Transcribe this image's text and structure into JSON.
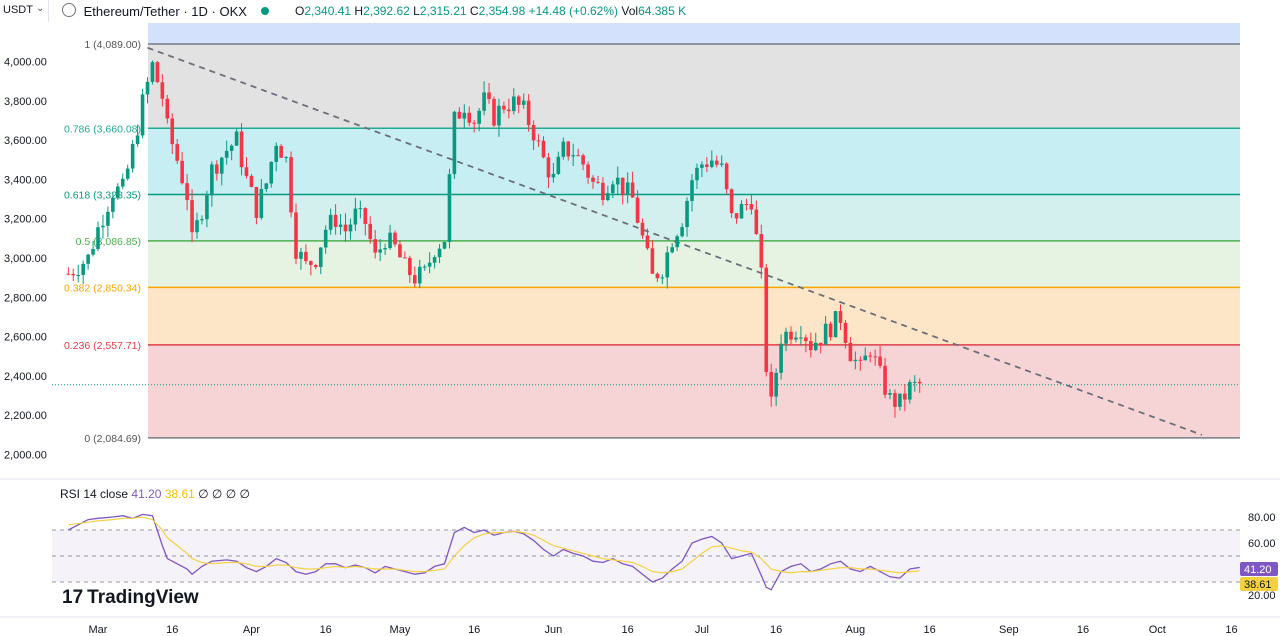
{
  "header": {
    "currency": "USDT",
    "pair_title": "Ethereum/Tether · 1D · OKX",
    "o_label": "O",
    "o_value": "2,340.41",
    "h_label": "H",
    "h_value": "2,392.62",
    "l_label": "L",
    "l_value": "2,315.21",
    "c_label": "C",
    "c_value": "2,354.98",
    "change": "+14.48 (+0.62%)",
    "vol_label": "Vol",
    "vol_value": "64.385 K"
  },
  "colors": {
    "up": "#089981",
    "down": "#f23645",
    "rsi": "#7e57c2",
    "rsi_ma": "#f5d142",
    "fib_0": "#f6d4d6",
    "fib_236": "#fde6c8",
    "fib_382": "#e6f3e3",
    "fib_5": "#d3f0ee",
    "fib_618": "#c7eef3",
    "fib_786": "#e2e2e2",
    "fib_1": "#d3e1fd"
  },
  "chart_data": [
    {
      "type": "candlestick",
      "title": "Ethereum/Tether · 1D · OKX",
      "ylim": [
        1950,
        4150
      ],
      "y_ticks": [
        2000,
        2200,
        2400,
        2600,
        2800,
        3000,
        3200,
        3400,
        3600,
        3800,
        4000
      ],
      "y_tick_labels": [
        "2,000.00",
        "2,200.00",
        "2,400.00",
        "2,600.00",
        "2,800.00",
        "3,000.00",
        "3,200.00",
        "3,400.00",
        "3,600.00",
        "3,800.00",
        "4,000.00"
      ],
      "x_ticks": [
        "Mar",
        "16",
        "Apr",
        "16",
        "May",
        "16",
        "Jun",
        "16",
        "Jul",
        "16",
        "Aug",
        "16",
        "Sep",
        "16",
        "Oct",
        "16"
      ],
      "x_tick_days": [
        0,
        15,
        31,
        46,
        61,
        76,
        92,
        107,
        122,
        137,
        153,
        168,
        184,
        199,
        214,
        229
      ],
      "fib_levels": [
        {
          "label": "1 (4,089.00)",
          "value": 4089
        },
        {
          "label": "0.786 (3,660.08)",
          "value": 3660.08
        },
        {
          "label": "0.618 (3,323.35)",
          "value": 3323.35
        },
        {
          "label": "0.5 (3,086.85)",
          "value": 3086.85
        },
        {
          "label": "0.382 (2,850.34)",
          "value": 2850.34
        },
        {
          "label": "0.236 (2,557.71)",
          "value": 2557.71
        },
        {
          "label": "0 (2,084.69)",
          "value": 2084.69
        }
      ],
      "trendline": [
        {
          "day": 10,
          "price": 4070
        },
        {
          "day": 223,
          "price": 2100
        }
      ],
      "current_price": 2354.98,
      "close_path": [
        [
          -6,
          2920
        ],
        [
          -2,
          3000
        ],
        [
          0,
          3150
        ],
        [
          3,
          3340
        ],
        [
          5,
          3350
        ],
        [
          7,
          3550
        ],
        [
          9,
          3790
        ],
        [
          11,
          3980
        ],
        [
          13,
          3820
        ],
        [
          14,
          3660
        ],
        [
          16,
          3500
        ],
        [
          18,
          3320
        ],
        [
          19,
          3080
        ],
        [
          21,
          3250
        ],
        [
          23,
          3450
        ],
        [
          26,
          3550
        ],
        [
          28,
          3600
        ],
        [
          30,
          3400
        ],
        [
          32,
          3250
        ],
        [
          34,
          3380
        ],
        [
          36,
          3600
        ],
        [
          38,
          3500
        ],
        [
          40,
          3050
        ],
        [
          42,
          2960
        ],
        [
          44,
          3000
        ],
        [
          46,
          3150
        ],
        [
          48,
          3200
        ],
        [
          50,
          3140
        ],
        [
          52,
          3220
        ],
        [
          54,
          3180
        ],
        [
          56,
          3000
        ],
        [
          58,
          3100
        ],
        [
          60,
          3050
        ],
        [
          62,
          2950
        ],
        [
          64,
          2900
        ],
        [
          66,
          2920
        ],
        [
          68,
          3050
        ],
        [
          70,
          3100
        ],
        [
          72,
          3700
        ],
        [
          74,
          3780
        ],
        [
          76,
          3700
        ],
        [
          78,
          3800
        ],
        [
          80,
          3720
        ],
        [
          82,
          3780
        ],
        [
          84,
          3790
        ],
        [
          86,
          3750
        ],
        [
          88,
          3640
        ],
        [
          90,
          3500
        ],
        [
          92,
          3400
        ],
        [
          94,
          3550
        ],
        [
          96,
          3540
        ],
        [
          98,
          3480
        ],
        [
          100,
          3380
        ],
        [
          102,
          3350
        ],
        [
          104,
          3420
        ],
        [
          106,
          3360
        ],
        [
          108,
          3300
        ],
        [
          110,
          3100
        ],
        [
          112,
          2900
        ],
        [
          114,
          2950
        ],
        [
          116,
          3100
        ],
        [
          118,
          3200
        ],
        [
          120,
          3400
        ],
        [
          122,
          3480
        ],
        [
          124,
          3500
        ],
        [
          126,
          3450
        ],
        [
          128,
          3200
        ],
        [
          130,
          3250
        ],
        [
          132,
          3300
        ],
        [
          134,
          2900
        ],
        [
          135,
          2450
        ],
        [
          136,
          2250
        ],
        [
          138,
          2600
        ],
        [
          140,
          2630
        ],
        [
          142,
          2650
        ],
        [
          144,
          2560
        ],
        [
          146,
          2600
        ],
        [
          148,
          2650
        ],
        [
          150,
          2700
        ],
        [
          152,
          2520
        ],
        [
          154,
          2430
        ],
        [
          156,
          2540
        ],
        [
          158,
          2400
        ],
        [
          160,
          2280
        ],
        [
          162,
          2260
        ],
        [
          164,
          2340
        ],
        [
          166,
          2355
        ]
      ]
    },
    {
      "type": "line",
      "title": "RSI 14 close",
      "ylim": [
        20,
        85
      ],
      "y_ticks": [
        20,
        40,
        60,
        80
      ],
      "y_tick_labels": [
        "20.00",
        "40.00",
        "60.00",
        "80.00"
      ],
      "bands": [
        30,
        50,
        70
      ],
      "series": [
        {
          "name": "RSI",
          "last": "41.20",
          "values": [
            [
              -6,
              70
            ],
            [
              -2,
              78
            ],
            [
              0,
              79
            ],
            [
              3,
              80
            ],
            [
              5,
              81
            ],
            [
              7,
              79
            ],
            [
              9,
              82
            ],
            [
              11,
              81
            ],
            [
              13,
              58
            ],
            [
              14,
              48
            ],
            [
              16,
              44
            ],
            [
              18,
              40
            ],
            [
              19,
              36
            ],
            [
              21,
              42
            ],
            [
              23,
              46
            ],
            [
              26,
              47
            ],
            [
              28,
              46
            ],
            [
              30,
              41
            ],
            [
              32,
              38
            ],
            [
              34,
              42
            ],
            [
              36,
              48
            ],
            [
              38,
              45
            ],
            [
              40,
              38
            ],
            [
              42,
              36
            ],
            [
              44,
              38
            ],
            [
              46,
              44
            ],
            [
              48,
              44
            ],
            [
              50,
              41
            ],
            [
              52,
              43
            ],
            [
              54,
              41
            ],
            [
              56,
              37
            ],
            [
              58,
              42
            ],
            [
              60,
              40
            ],
            [
              62,
              38
            ],
            [
              64,
              36
            ],
            [
              66,
              37
            ],
            [
              68,
              42
            ],
            [
              70,
              44
            ],
            [
              72,
              68
            ],
            [
              74,
              72
            ],
            [
              76,
              68
            ],
            [
              78,
              70
            ],
            [
              80,
              66
            ],
            [
              82,
              68
            ],
            [
              84,
              69
            ],
            [
              86,
              67
            ],
            [
              88,
              62
            ],
            [
              90,
              55
            ],
            [
              92,
              50
            ],
            [
              94,
              55
            ],
            [
              96,
              52
            ],
            [
              98,
              50
            ],
            [
              100,
              46
            ],
            [
              102,
              45
            ],
            [
              104,
              48
            ],
            [
              106,
              44
            ],
            [
              108,
              42
            ],
            [
              110,
              36
            ],
            [
              112,
              30
            ],
            [
              114,
              33
            ],
            [
              116,
              40
            ],
            [
              118,
              46
            ],
            [
              120,
              60
            ],
            [
              122,
              63
            ],
            [
              124,
              65
            ],
            [
              126,
              60
            ],
            [
              128,
              48
            ],
            [
              130,
              50
            ],
            [
              132,
              52
            ],
            [
              134,
              35
            ],
            [
              135,
              26
            ],
            [
              136,
              24
            ],
            [
              138,
              38
            ],
            [
              140,
              42
            ],
            [
              142,
              44
            ],
            [
              144,
              38
            ],
            [
              146,
              40
            ],
            [
              148,
              44
            ],
            [
              150,
              46
            ],
            [
              152,
              40
            ],
            [
              154,
              38
            ],
            [
              156,
              42
            ],
            [
              158,
              38
            ],
            [
              160,
              34
            ],
            [
              162,
              33
            ],
            [
              164,
              40
            ],
            [
              166,
              41.2
            ]
          ]
        },
        {
          "name": "RSI-based MA",
          "last": "38.61",
          "values": [
            [
              -6,
              74
            ],
            [
              -2,
              76
            ],
            [
              0,
              77
            ],
            [
              3,
              78
            ],
            [
              5,
              79
            ],
            [
              7,
              79
            ],
            [
              9,
              80
            ],
            [
              11,
              78
            ],
            [
              13,
              70
            ],
            [
              14,
              64
            ],
            [
              16,
              58
            ],
            [
              18,
              52
            ],
            [
              19,
              48
            ],
            [
              21,
              45
            ],
            [
              23,
              44
            ],
            [
              26,
              45
            ],
            [
              28,
              45
            ],
            [
              30,
              44
            ],
            [
              32,
              42
            ],
            [
              34,
              42
            ],
            [
              36,
              43
            ],
            [
              38,
              43
            ],
            [
              40,
              41
            ],
            [
              42,
              40
            ],
            [
              44,
              40
            ],
            [
              46,
              41
            ],
            [
              48,
              42
            ],
            [
              50,
              41
            ],
            [
              52,
              42
            ],
            [
              54,
              41
            ],
            [
              56,
              40
            ],
            [
              58,
              40
            ],
            [
              60,
              40
            ],
            [
              62,
              39
            ],
            [
              64,
              38
            ],
            [
              66,
              38
            ],
            [
              68,
              39
            ],
            [
              70,
              40
            ],
            [
              72,
              50
            ],
            [
              74,
              58
            ],
            [
              76,
              64
            ],
            [
              78,
              67
            ],
            [
              80,
              68
            ],
            [
              82,
              68
            ],
            [
              84,
              69
            ],
            [
              86,
              68
            ],
            [
              88,
              66
            ],
            [
              90,
              62
            ],
            [
              92,
              58
            ],
            [
              94,
              56
            ],
            [
              96,
              54
            ],
            [
              98,
              52
            ],
            [
              100,
              50
            ],
            [
              102,
              48
            ],
            [
              104,
              47
            ],
            [
              106,
              46
            ],
            [
              108,
              45
            ],
            [
              110,
              42
            ],
            [
              112,
              38
            ],
            [
              114,
              37
            ],
            [
              116,
              38
            ],
            [
              118,
              40
            ],
            [
              120,
              46
            ],
            [
              122,
              52
            ],
            [
              124,
              57
            ],
            [
              126,
              58
            ],
            [
              128,
              56
            ],
            [
              130,
              54
            ],
            [
              132,
              53
            ],
            [
              134,
              48
            ],
            [
              135,
              44
            ],
            [
              136,
              40
            ],
            [
              138,
              38
            ],
            [
              140,
              37
            ],
            [
              142,
              38
            ],
            [
              144,
              38
            ],
            [
              146,
              39
            ],
            [
              148,
              40
            ],
            [
              150,
              41
            ],
            [
              152,
              41
            ],
            [
              154,
              40
            ],
            [
              156,
              40
            ],
            [
              158,
              39
            ],
            [
              160,
              38
            ],
            [
              162,
              37
            ],
            [
              164,
              38
            ],
            [
              166,
              38.61
            ]
          ]
        }
      ],
      "legend_extra": "∅ ∅ ∅ ∅"
    }
  ],
  "brand": "TradingView"
}
